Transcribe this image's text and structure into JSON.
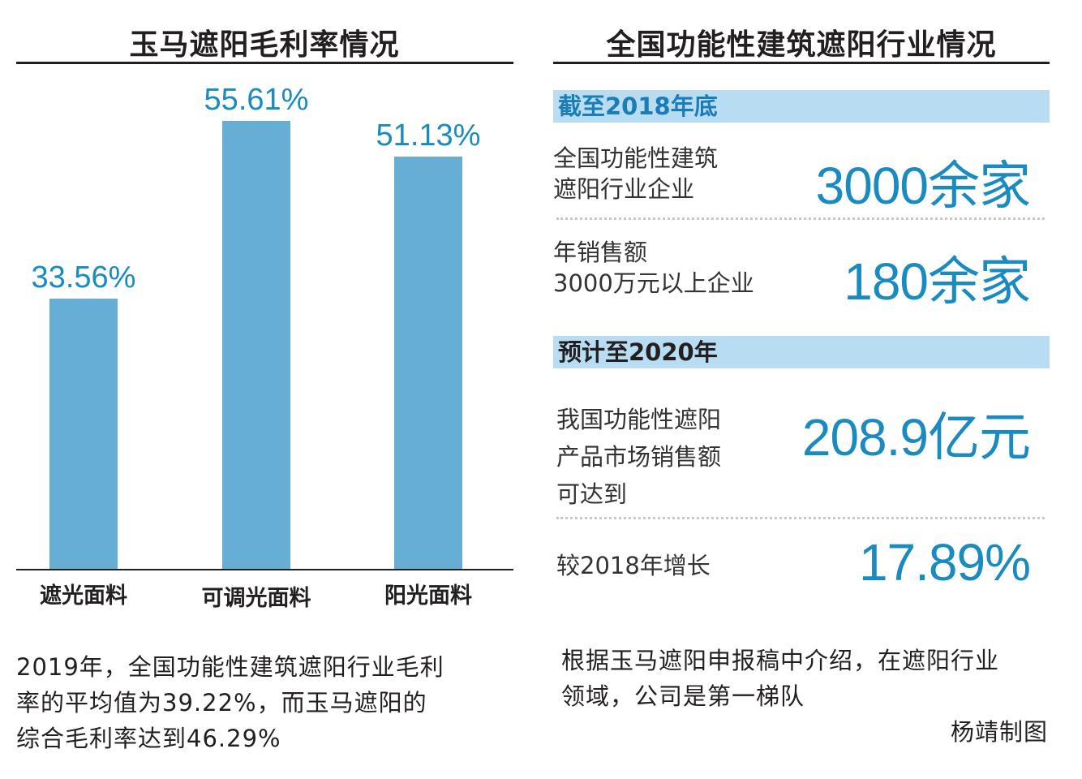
{
  "left_panel": {
    "title": "玉马遮阳毛利率情况",
    "note": [
      "2019年，全国功能性建筑遮阳行业毛利",
      "率的平均值为39.22%，而玉马遮阳的",
      "综合毛利率达到46.29%"
    ]
  },
  "chart_data": {
    "type": "bar",
    "title": "玉马遮阳毛利率情况",
    "categories": [
      "遮光面料",
      "可调光面料",
      "阳光面料"
    ],
    "values": [
      33.56,
      55.61,
      51.13
    ],
    "value_labels": [
      "33.56%",
      "55.61%",
      "51.13%"
    ],
    "unit": "%",
    "xlabel": "",
    "ylabel": "毛利率",
    "ylim": [
      0,
      60
    ],
    "grid": false,
    "legend": null,
    "bar_color": "#66aed4",
    "label_color": "#1a8bc0"
  },
  "right_panel": {
    "title": "全国功能性建筑遮阳行业情况",
    "sections": [
      {
        "header": "截至2018年底",
        "rows": [
          {
            "label": [
              "全国功能性建筑",
              "遮阳行业企业"
            ],
            "value": "3000余家"
          },
          {
            "label": [
              "年销售额",
              "3000万元以上企业"
            ],
            "value": "180余家"
          }
        ]
      },
      {
        "header": "预计至2020年",
        "rows": [
          {
            "label": [
              "我国功能性遮阳",
              "产品市场销售额",
              "可达到"
            ],
            "value": "208.9亿元"
          },
          {
            "label": [
              "较2018年增长"
            ],
            "value": "17.89%"
          }
        ]
      }
    ],
    "note": [
      "根据玉马遮阳申报稿中介绍，在遮阳行业",
      "领域，公司是第一梯队"
    ],
    "credit": "杨靖制图"
  },
  "colors": {
    "accent": "#1a8bc0",
    "bar": "#66aed4",
    "band": "#b8dcf2",
    "text": "#231f20"
  }
}
